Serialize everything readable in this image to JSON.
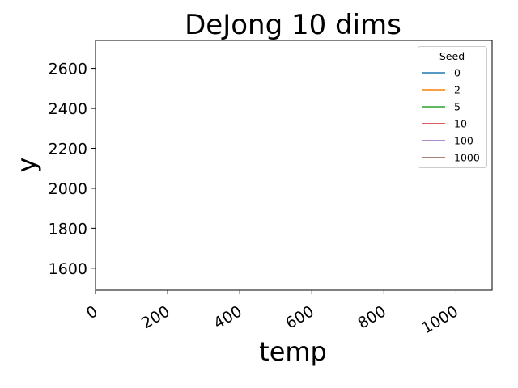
{
  "chart_data": {
    "type": "line",
    "title": "DeJong 10 dims",
    "xlabel": "temp",
    "ylabel": "y",
    "xlim": [
      0,
      1100
    ],
    "ylim": [
      1490,
      2740
    ],
    "xticks": [
      0,
      200,
      400,
      600,
      800,
      1000
    ],
    "yticks": [
      1600,
      1800,
      2000,
      2200,
      2400,
      2600
    ],
    "grid": false,
    "legend": {
      "title": "Seed",
      "placement": "top-right"
    },
    "series": [
      {
        "name": "0",
        "color": "#1f77b4",
        "x": [],
        "y": []
      },
      {
        "name": "2",
        "color": "#ff7f0e",
        "x": [],
        "y": []
      },
      {
        "name": "5",
        "color": "#2ca02c",
        "x": [],
        "y": []
      },
      {
        "name": "10",
        "color": "#d62728",
        "x": [],
        "y": []
      },
      {
        "name": "100",
        "color": "#9467bd",
        "x": [],
        "y": []
      },
      {
        "name": "1000",
        "color": "#8c564b",
        "x": [],
        "y": []
      }
    ]
  }
}
